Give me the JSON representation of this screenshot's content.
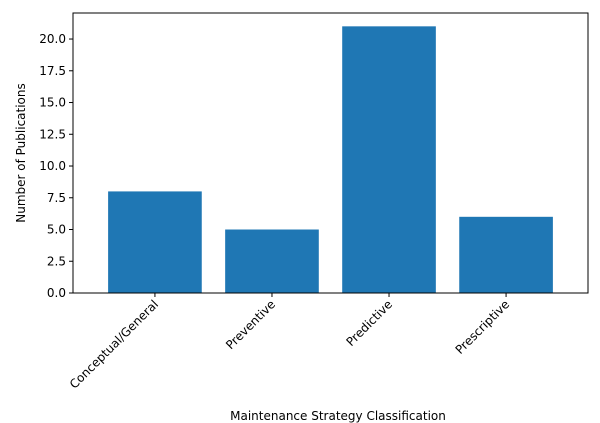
{
  "chart_data": {
    "type": "bar",
    "title": "",
    "xlabel": "Maintenance Strategy Classification",
    "ylabel": "Number of Publications",
    "categories": [
      "Conceptual/General",
      "Preventive",
      "Predictive",
      "Prescriptive"
    ],
    "values": [
      8,
      5,
      21,
      6
    ],
    "ylim": [
      0,
      22.05
    ],
    "yticks": [
      0.0,
      2.5,
      5.0,
      7.5,
      10.0,
      12.5,
      15.0,
      17.5,
      20.0
    ],
    "ytick_labels": [
      "0.0",
      "2.5",
      "5.0",
      "7.5",
      "10.0",
      "12.5",
      "15.0",
      "17.5",
      "20.0"
    ],
    "bar_color": "#1f77b4",
    "xtick_rotation": "45 degrees",
    "grid": false,
    "legend": "none"
  }
}
